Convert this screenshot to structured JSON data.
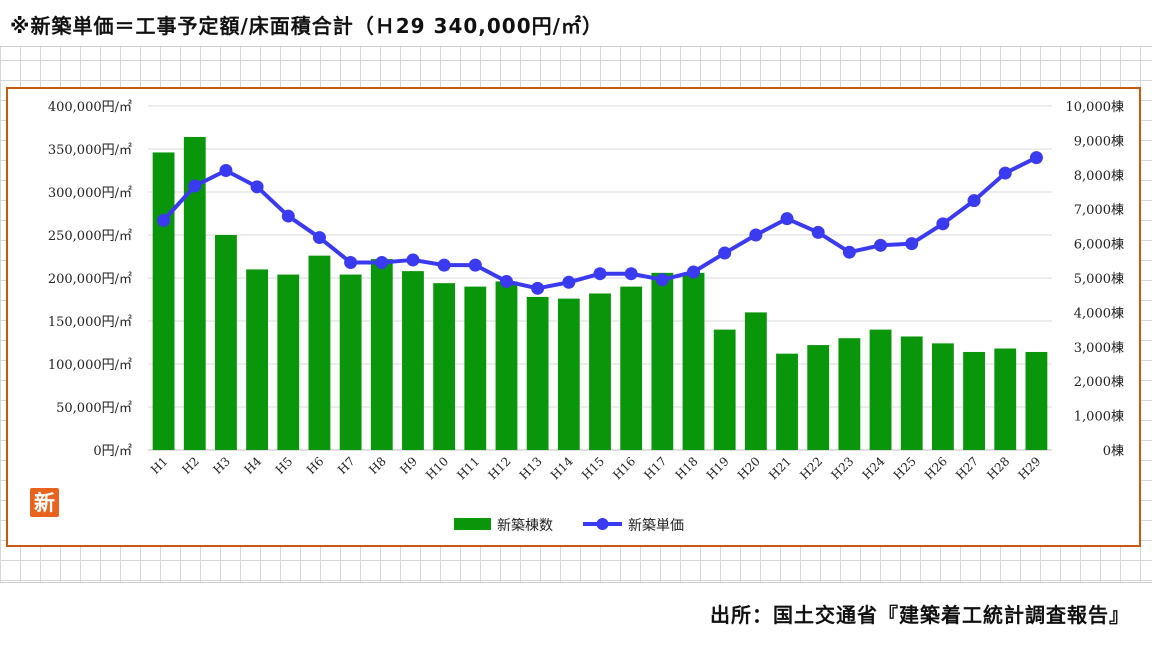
{
  "header": {
    "note": "※新築単価＝工事予定額/床面積合計（Ｈ29 340,000円/㎡）"
  },
  "footer": {
    "source": "出所：国土交通省『建築着工統計調査報告』"
  },
  "chart_data": {
    "type": "bar",
    "categories": [
      "H1",
      "H2",
      "H3",
      "H4",
      "H5",
      "H6",
      "H7",
      "H8",
      "H9",
      "H10",
      "H11",
      "H12",
      "H13",
      "H14",
      "H15",
      "H16",
      "H17",
      "H18",
      "H19",
      "H20",
      "H21",
      "H22",
      "H23",
      "H24",
      "H25",
      "H26",
      "H27",
      "H28",
      "H29"
    ],
    "series": [
      {
        "name": "新築棟数",
        "type": "bar",
        "axis": "right",
        "color": "#0a960a",
        "values": [
          8650,
          9100,
          6250,
          5250,
          5100,
          5650,
          5100,
          5550,
          5200,
          4850,
          4750,
          4900,
          4450,
          4400,
          4550,
          4750,
          5150,
          5150,
          3500,
          4000,
          2800,
          3050,
          3250,
          3500,
          3300,
          3100,
          2850,
          2950,
          2850
        ]
      },
      {
        "name": "新築単価",
        "type": "line",
        "axis": "left",
        "color": "#3a3af0",
        "values": [
          267000,
          307000,
          325000,
          306000,
          272000,
          247000,
          218000,
          218000,
          221000,
          215000,
          215000,
          196000,
          188000,
          195000,
          205000,
          205000,
          198000,
          207000,
          229000,
          250000,
          269000,
          253000,
          230000,
          238000,
          240000,
          263000,
          290000,
          322000,
          340000
        ]
      }
    ],
    "y_left": {
      "min": 0,
      "max": 400000,
      "step": 50000
    },
    "y_right": {
      "min": 0,
      "max": 10000,
      "step": 1000
    },
    "y_left_ticks": [
      "0円/㎡",
      "50,000円/㎡",
      "100,000円/㎡",
      "150,000円/㎡",
      "200,000円/㎡",
      "250,000円/㎡",
      "300,000円/㎡",
      "350,000円/㎡",
      "400,000円/㎡"
    ],
    "y_right_ticks": [
      "0棟",
      "1,000棟",
      "2,000棟",
      "3,000棟",
      "4,000棟",
      "5,000棟",
      "6,000棟",
      "7,000棟",
      "8,000棟",
      "9,000棟",
      "10,000棟"
    ],
    "legend": {
      "placement": "bottom",
      "items": [
        "新築棟数",
        "新築単価"
      ]
    },
    "grid": true,
    "badge": "新"
  }
}
